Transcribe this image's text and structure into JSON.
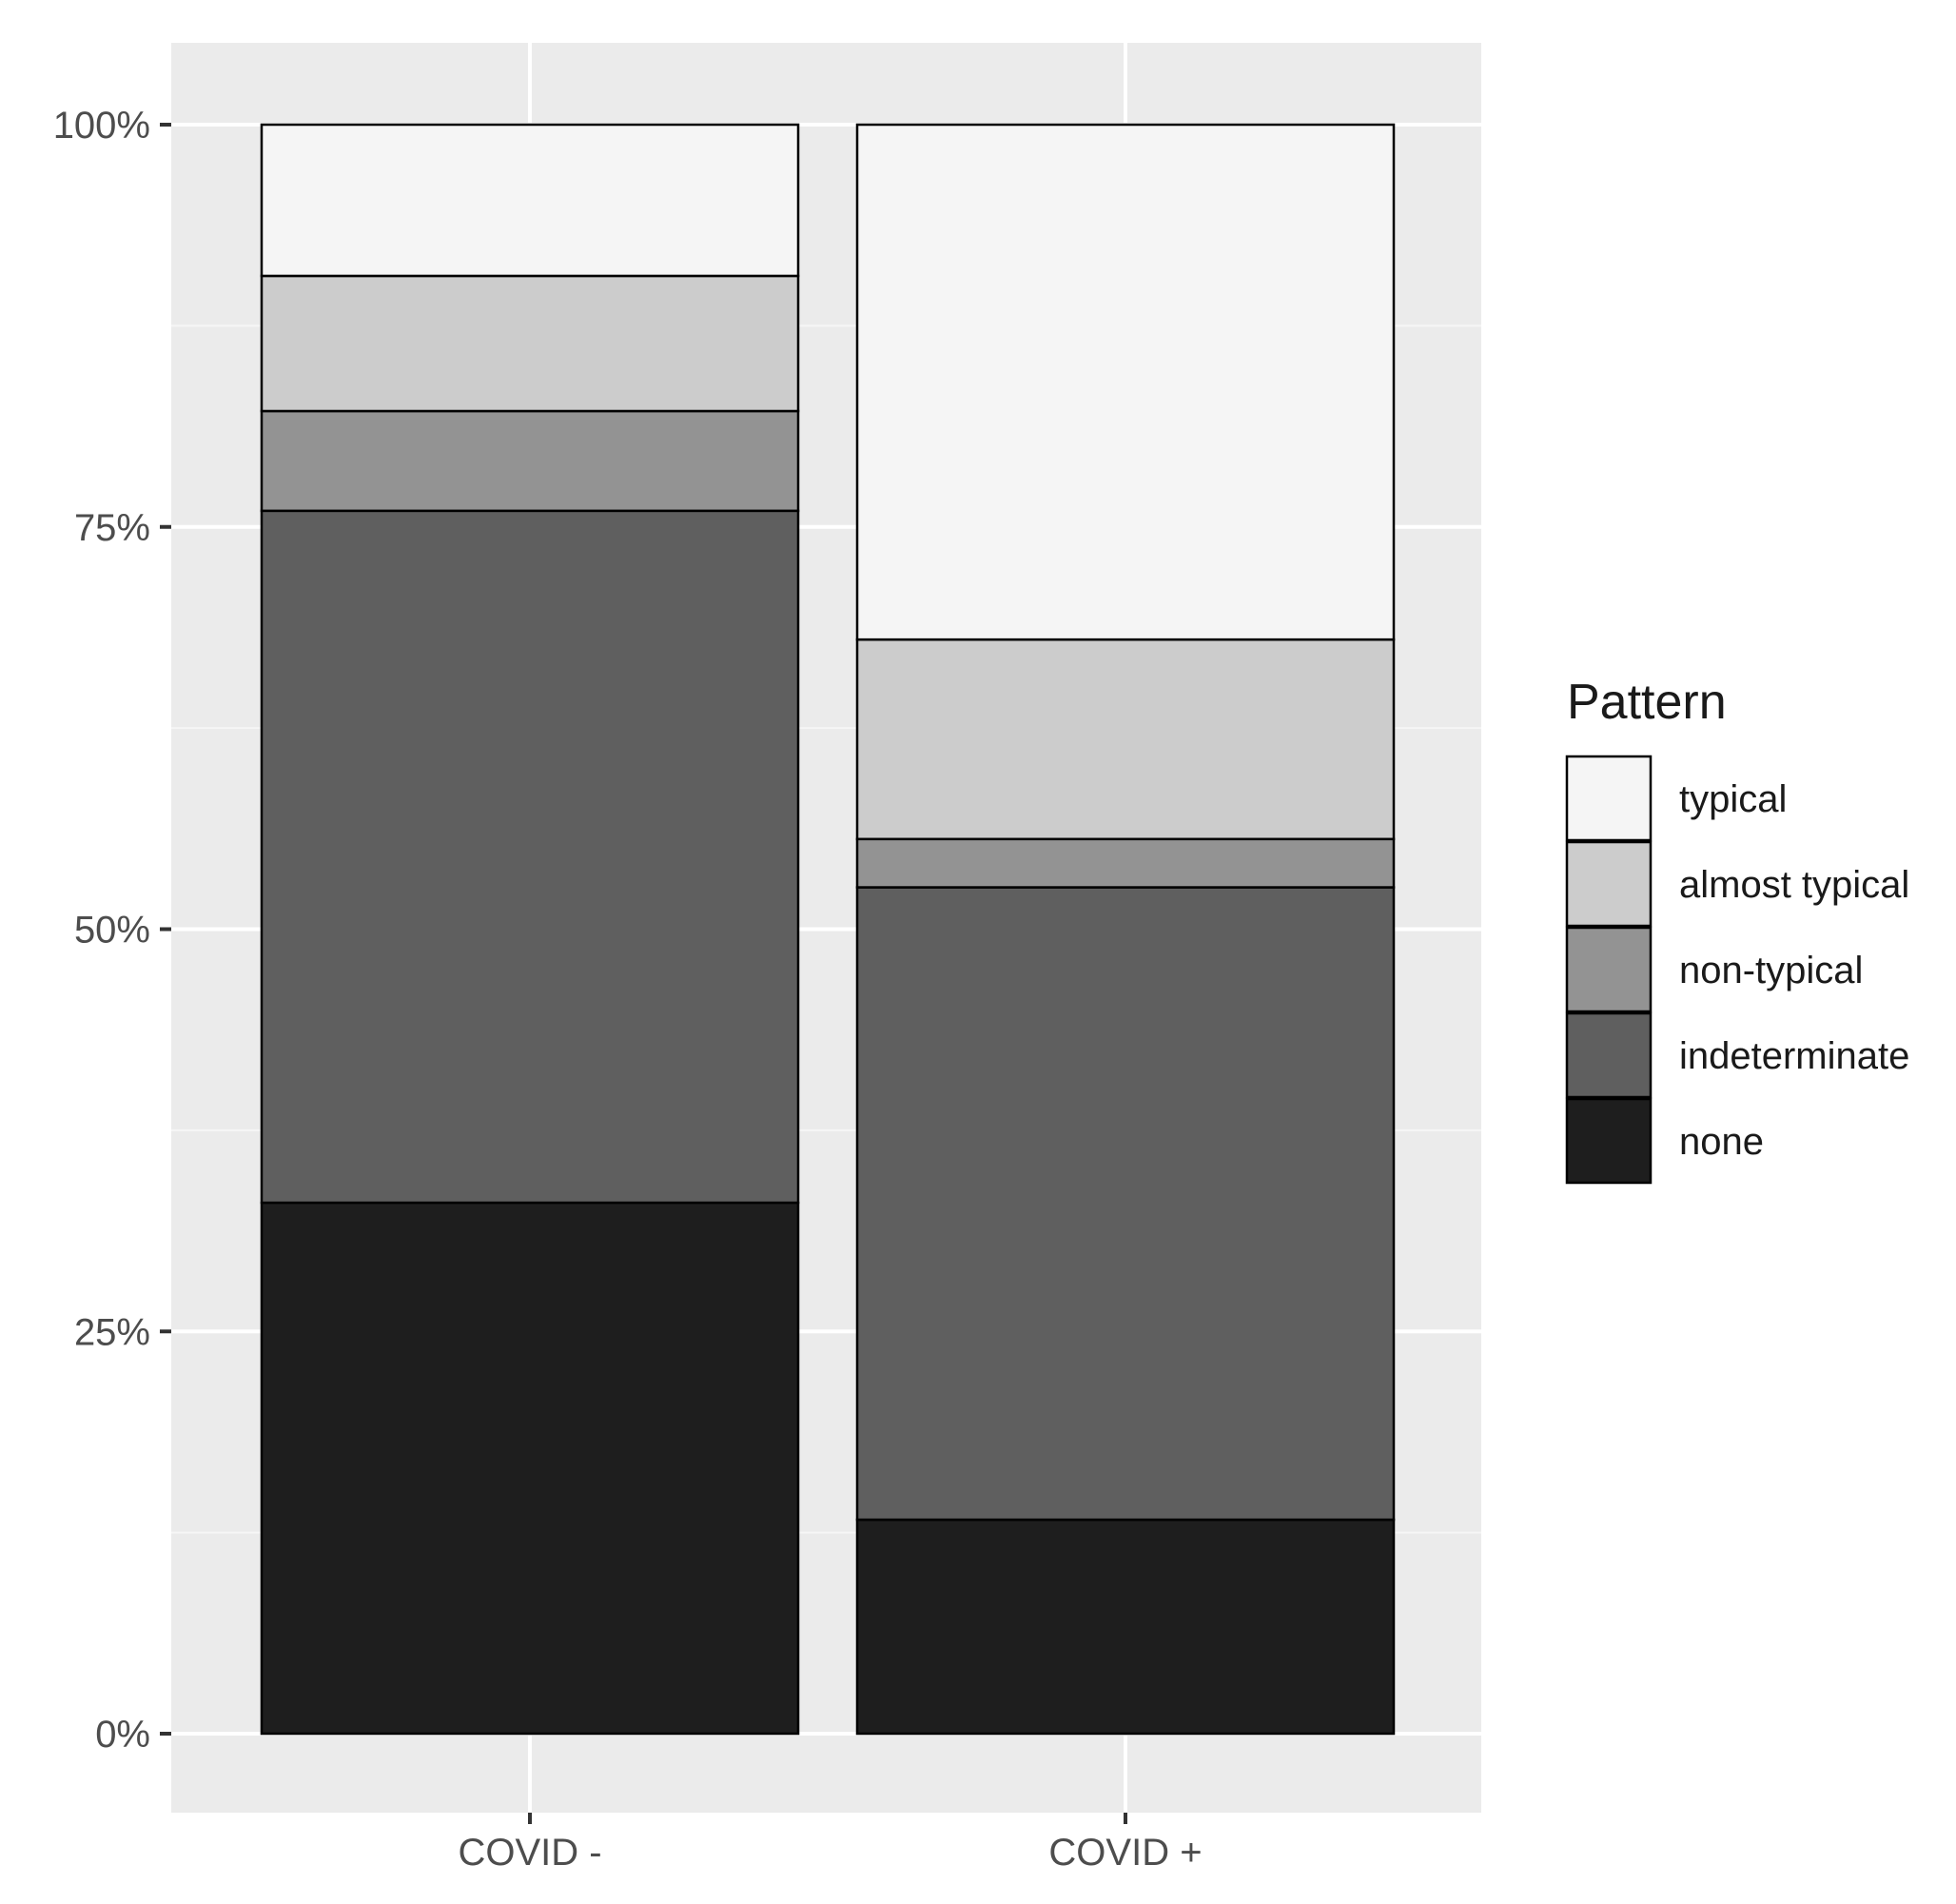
{
  "chart_data": {
    "type": "bar",
    "stacked": true,
    "percent": true,
    "categories": [
      "COVID -",
      "COVID +"
    ],
    "series": [
      {
        "name": "none",
        "color": "#1e1e1e",
        "values": [
          33.0,
          13.3
        ]
      },
      {
        "name": "indeterminate",
        "color": "#5f5f5f",
        "values": [
          43.0,
          39.3
        ]
      },
      {
        "name": "non-typical",
        "color": "#939393",
        "values": [
          6.2,
          3.0
        ]
      },
      {
        "name": "almost typical",
        "color": "#cccccc",
        "values": [
          8.4,
          12.4
        ]
      },
      {
        "name": "typical",
        "color": "#f5f5f5",
        "values": [
          9.4,
          32.0
        ]
      }
    ],
    "yticks": [
      "0%",
      "25%",
      "50%",
      "75%",
      "100%"
    ],
    "ylim": [
      -5,
      105
    ],
    "grid": true,
    "legend_position": "right",
    "legend_title": "Pattern",
    "legend_order": [
      "typical",
      "almost typical",
      "non-typical",
      "indeterminate",
      "none"
    ],
    "xlabel": "",
    "ylabel": "",
    "colors": {
      "panel_background": "#ebebeb",
      "gridline": "#ffffff",
      "bar_outline": "#000000"
    }
  }
}
